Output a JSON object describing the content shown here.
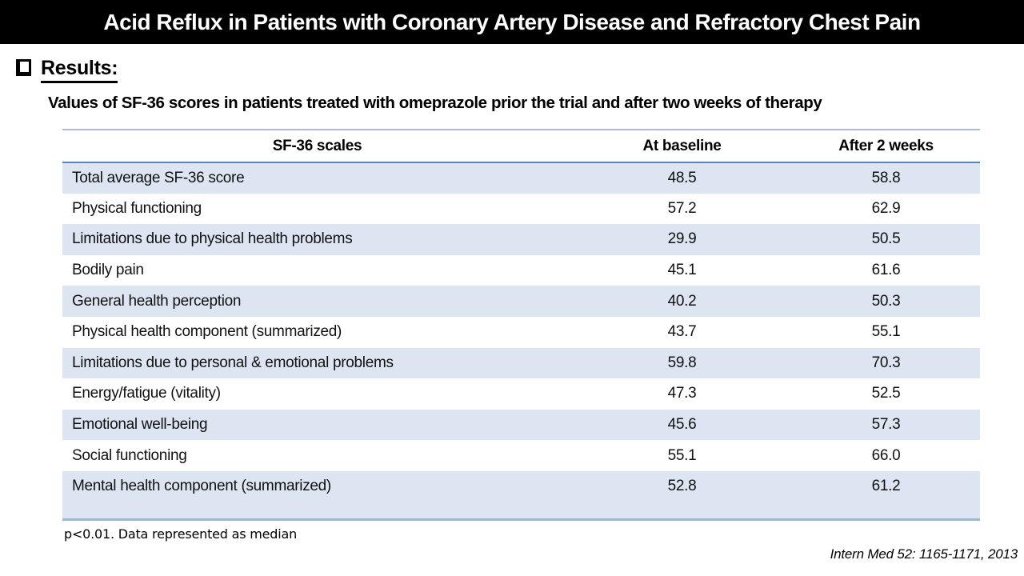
{
  "slide": {
    "title": "Acid Reflux in Patients with Coronary Artery Disease and Refractory Chest Pain",
    "section_heading": "Results:",
    "table_title": "Values of SF-36 scores in patients treated with omeprazole prior the trial and after two weeks of therapy",
    "footnote": "p<0.01. Data represented as median",
    "citation": "Intern Med 52: 1165-1171, 2013"
  },
  "table": {
    "columns": [
      "SF-36 scales",
      "At baseline",
      "After 2 weeks"
    ],
    "rows": [
      [
        "Total average SF-36 score",
        "48.5",
        "58.8"
      ],
      [
        "Physical functioning",
        "57.2",
        "62.9"
      ],
      [
        "Limitations due to physical health problems",
        "29.9",
        "50.5"
      ],
      [
        "Bodily pain",
        "45.1",
        "61.6"
      ],
      [
        "General health perception",
        "40.2",
        "50.3"
      ],
      [
        "Physical health component (summarized)",
        "43.7",
        "55.1"
      ],
      [
        "Limitations due to personal & emotional problems",
        "59.8",
        "70.3"
      ],
      [
        "Energy/fatigue (vitality)",
        "47.3",
        "52.5"
      ],
      [
        "Emotional well-being",
        "45.6",
        "57.3"
      ],
      [
        "Social functioning",
        "55.1",
        "66.0"
      ],
      [
        "Mental health component (summarized)",
        "52.8",
        "61.2"
      ]
    ]
  },
  "colors": {
    "title_bar_bg": "#000000",
    "title_text": "#ffffff",
    "row_band": "#dce5f1",
    "table_top_line": "#a9bcd2",
    "header_separator_line": "#5b84b1",
    "table_bottom_line": "#9eb6ce"
  }
}
